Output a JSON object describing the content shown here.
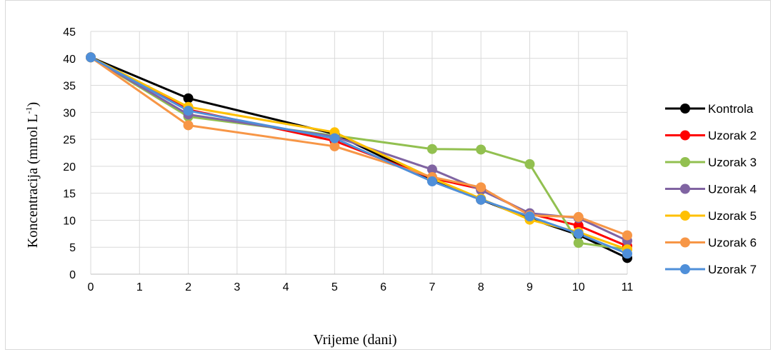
{
  "chart_data": {
    "type": "line",
    "xlabel": "Vrijeme (dani)",
    "ylabel_main": "Koncentracija (mmol L",
    "ylabel_sup": "-1",
    "ylabel_end": ")",
    "xlim": [
      0,
      11
    ],
    "ylim": [
      0,
      45
    ],
    "x_ticks": [
      0,
      1,
      2,
      3,
      4,
      5,
      6,
      7,
      8,
      9,
      10,
      11
    ],
    "y_ticks": [
      0,
      5,
      10,
      15,
      20,
      25,
      30,
      35,
      40,
      45
    ],
    "grid": true,
    "legend_position": "right",
    "x": [
      0,
      2,
      5,
      7,
      8,
      9,
      10,
      11
    ],
    "series": [
      {
        "name": "Kontrola",
        "color": "#000000",
        "values": [
          40.2,
          32.6,
          26.0,
          17.3,
          13.8,
          10.3,
          7.3,
          3.0
        ]
      },
      {
        "name": "Uzorak 2",
        "color": "#ff0000",
        "values": [
          40.2,
          30.5,
          24.7,
          17.8,
          15.8,
          11.2,
          9.0,
          5.2
        ]
      },
      {
        "name": "Uzorak 3",
        "color": "#92c050",
        "values": [
          40.2,
          29.2,
          25.7,
          23.2,
          23.1,
          20.4,
          5.8,
          4.6
        ]
      },
      {
        "name": "Uzorak 4",
        "color": "#8064a2",
        "values": [
          40.2,
          29.6,
          25.5,
          19.4,
          15.6,
          11.3,
          10.4,
          6.2
        ]
      },
      {
        "name": "Uzorak 5",
        "color": "#ffc000",
        "values": [
          40.2,
          31.0,
          26.3,
          17.8,
          14.0,
          10.1,
          7.8,
          4.6
        ]
      },
      {
        "name": "Uzorak 6",
        "color": "#f79646",
        "values": [
          40.2,
          27.6,
          23.7,
          18.0,
          16.1,
          10.9,
          10.6,
          7.2
        ]
      },
      {
        "name": "Uzorak 7",
        "color": "#4f8fd9",
        "values": [
          40.2,
          30.3,
          25.2,
          17.2,
          13.8,
          10.7,
          7.5,
          3.8
        ]
      }
    ]
  }
}
